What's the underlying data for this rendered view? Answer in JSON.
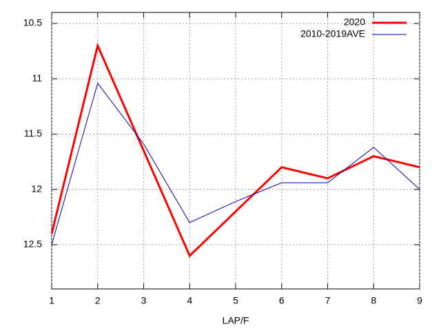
{
  "chart_data": {
    "type": "line",
    "xlabel": "LAP/F",
    "x": [
      1,
      2,
      3,
      4,
      5,
      6,
      7,
      8,
      9
    ],
    "xlim": [
      1,
      9
    ],
    "xticks": [
      1,
      2,
      3,
      4,
      5,
      6,
      7,
      8,
      9
    ],
    "ylim": [
      12.9,
      10.4
    ],
    "yticks": [
      10.5,
      11,
      11.5,
      12,
      12.5
    ],
    "grid": true,
    "legend": "top-right",
    "series": [
      {
        "name": "2020",
        "color": "#ff0000",
        "width": 3,
        "values": [
          12.4,
          10.7,
          11.65,
          12.6,
          12.2,
          11.8,
          11.9,
          11.7,
          11.8
        ]
      },
      {
        "name": "2010-2019AVE",
        "color": "#0000a0",
        "width": 1,
        "values": [
          12.5,
          11.04,
          11.59,
          12.3,
          12.11,
          11.94,
          11.94,
          11.62,
          12.0
        ]
      }
    ]
  }
}
